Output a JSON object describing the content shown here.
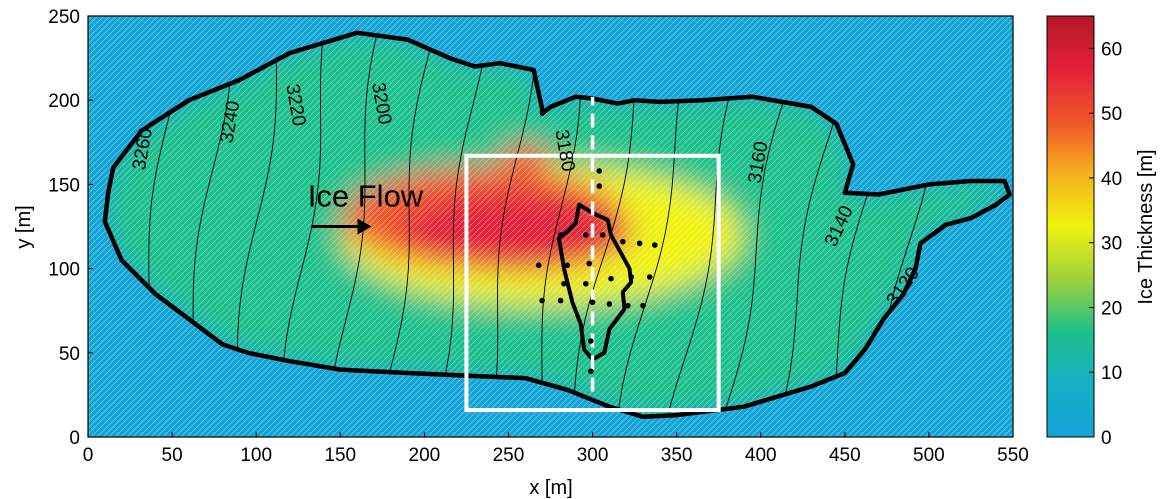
{
  "chart_data": {
    "type": "heatmap",
    "xlabel": "x [m]",
    "ylabel": "y [m]",
    "xlim": [
      0,
      550
    ],
    "ylim": [
      0,
      250
    ],
    "xticks": [
      0,
      50,
      100,
      150,
      200,
      250,
      300,
      350,
      400,
      450,
      500,
      550
    ],
    "yticks": [
      0,
      50,
      100,
      150,
      200,
      250
    ],
    "colorbar": {
      "label": "Ice Thickness [m]",
      "min": 0,
      "max": 65,
      "ticks": [
        0,
        10,
        20,
        30,
        40,
        50,
        60
      ],
      "stops": [
        "#13a5d6",
        "#16b0c6",
        "#1ec08a",
        "#9fd23a",
        "#eef211",
        "#f6b21e",
        "#f0542a",
        "#e3203a",
        "#b41826"
      ]
    },
    "annotation": {
      "text": "Ice Flow",
      "x": 165,
      "y": 137
    },
    "contour_labels": [
      {
        "text": "3260",
        "x": 33,
        "y": 171,
        "angle": -80
      },
      {
        "text": "3240",
        "x": 85,
        "y": 187,
        "angle": -80
      },
      {
        "text": "3220",
        "x": 123,
        "y": 197,
        "angle": 80
      },
      {
        "text": "3200",
        "x": 174,
        "y": 198,
        "angle": 80
      },
      {
        "text": "3180",
        "x": 283,
        "y": 170,
        "angle": 80
      },
      {
        "text": "3160",
        "x": 399,
        "y": 163,
        "angle": -80
      },
      {
        "text": "3140",
        "x": 447,
        "y": 125,
        "angle": -65
      },
      {
        "text": "3120",
        "x": 485,
        "y": 89,
        "angle": -55
      }
    ],
    "glacier_outline": [
      [
        12,
        145
      ],
      [
        15,
        160
      ],
      [
        32,
        182
      ],
      [
        60,
        200
      ],
      [
        90,
        212
      ],
      [
        120,
        228
      ],
      [
        160,
        240
      ],
      [
        190,
        236
      ],
      [
        215,
        225
      ],
      [
        230,
        220
      ],
      [
        245,
        222
      ],
      [
        265,
        218
      ],
      [
        270,
        195
      ],
      [
        270,
        192
      ],
      [
        275,
        196
      ],
      [
        290,
        202
      ],
      [
        300,
        201
      ],
      [
        315,
        198
      ],
      [
        325,
        200
      ],
      [
        340,
        199
      ],
      [
        365,
        200
      ],
      [
        395,
        202
      ],
      [
        430,
        196
      ],
      [
        445,
        186
      ],
      [
        455,
        162
      ],
      [
        450,
        145
      ],
      [
        470,
        144
      ],
      [
        500,
        150
      ],
      [
        525,
        152
      ],
      [
        545,
        152
      ],
      [
        548,
        144
      ],
      [
        540,
        138
      ],
      [
        525,
        130
      ],
      [
        510,
        126
      ],
      [
        495,
        115
      ],
      [
        492,
        100
      ],
      [
        485,
        85
      ],
      [
        473,
        70
      ],
      [
        462,
        52
      ],
      [
        450,
        38
      ],
      [
        430,
        30
      ],
      [
        390,
        18
      ],
      [
        350,
        13
      ],
      [
        330,
        12
      ],
      [
        310,
        18
      ],
      [
        285,
        28
      ],
      [
        260,
        35
      ],
      [
        235,
        36
      ],
      [
        190,
        38
      ],
      [
        150,
        40
      ],
      [
        120,
        45
      ],
      [
        95,
        50
      ],
      [
        80,
        55
      ],
      [
        60,
        70
      ],
      [
        40,
        85
      ],
      [
        20,
        105
      ],
      [
        10,
        128
      ],
      [
        12,
        145
      ]
    ],
    "inner_outline": [
      [
        292,
        138
      ],
      [
        300,
        133
      ],
      [
        309,
        129
      ],
      [
        311,
        120
      ],
      [
        322,
        100
      ],
      [
        323,
        92
      ],
      [
        318,
        86
      ],
      [
        319,
        76
      ],
      [
        310,
        64
      ],
      [
        307,
        50
      ],
      [
        300,
        46
      ],
      [
        295,
        52
      ],
      [
        293,
        67
      ],
      [
        288,
        80
      ],
      [
        283,
        100
      ],
      [
        280,
        118
      ],
      [
        285,
        122
      ],
      [
        290,
        127
      ],
      [
        292,
        138
      ]
    ],
    "study_box": {
      "x": [
        225,
        375
      ],
      "y": [
        16,
        167
      ]
    },
    "profile_line": {
      "x": 300,
      "y": [
        27,
        202
      ]
    },
    "stations": [
      [
        304,
        158
      ],
      [
        304,
        149
      ],
      [
        281,
        120
      ],
      [
        296,
        120
      ],
      [
        306,
        120
      ],
      [
        318,
        116
      ],
      [
        328,
        115
      ],
      [
        337,
        114
      ],
      [
        268,
        102
      ],
      [
        285,
        102
      ],
      [
        298,
        103
      ],
      [
        283,
        91
      ],
      [
        296,
        91
      ],
      [
        311,
        94
      ],
      [
        323,
        95
      ],
      [
        334,
        95
      ],
      [
        270,
        81
      ],
      [
        281,
        81
      ],
      [
        300,
        80
      ],
      [
        310,
        79
      ],
      [
        321,
        78
      ],
      [
        330,
        78
      ],
      [
        299,
        57
      ],
      [
        299,
        39
      ]
    ]
  }
}
